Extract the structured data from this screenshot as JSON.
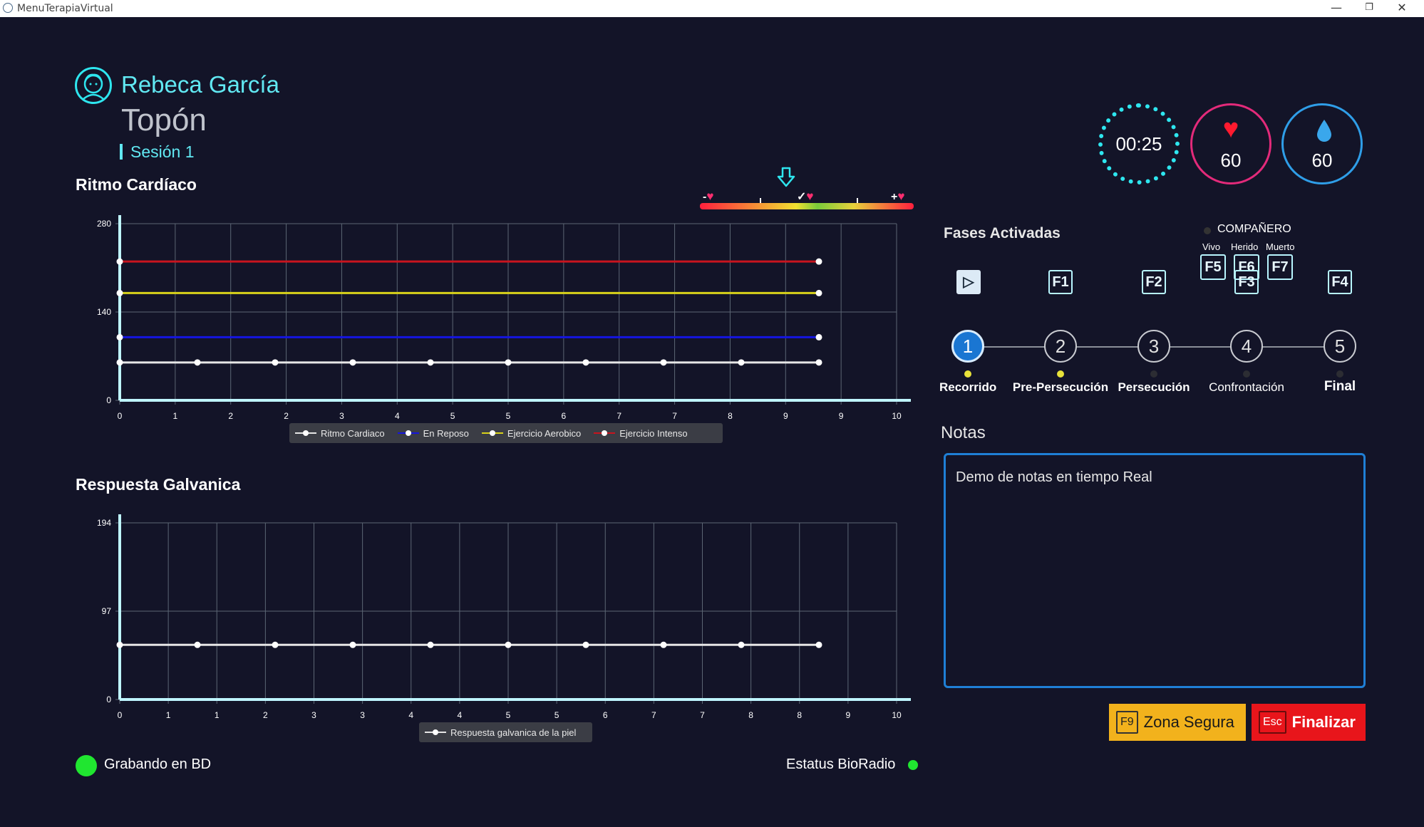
{
  "window": {
    "title": "MenuTerapiaVirtual",
    "minimize": "—",
    "restore": "❐",
    "close": "✕"
  },
  "patient": {
    "name": "Rebeca García",
    "scenario": "Topón",
    "session": "Sesión 1"
  },
  "heart_chart": {
    "title": "Ritmo Cardíaco"
  },
  "gsr_chart": {
    "title": "Respuesta Galvanica"
  },
  "scale": {
    "minus": "-",
    "check": "✓",
    "plus": "+"
  },
  "gauges": {
    "time": "00:25",
    "heart_rate": "60",
    "gsr": "60"
  },
  "phases": {
    "title": "Fases Activadas",
    "start_key": "▷",
    "keys": [
      "F1",
      "F2",
      "F3",
      "F4"
    ],
    "items": [
      {
        "number": "1",
        "label": "Recorrido",
        "active": true,
        "dot": true
      },
      {
        "number": "2",
        "label": "Pre-Persecución",
        "active": false,
        "dot": true
      },
      {
        "number": "3",
        "label": "Persecución",
        "active": false,
        "dot": false
      },
      {
        "number": "4",
        "label": "Confrontación",
        "active": false,
        "dot": false
      },
      {
        "number": "5",
        "label": "Final",
        "active": false,
        "dot": false
      }
    ]
  },
  "companion": {
    "title": "COMPAÑERO",
    "options": [
      {
        "label": "Vivo",
        "key": "F5"
      },
      {
        "label": "Herido",
        "key": "F6"
      },
      {
        "label": "Muerto",
        "key": "F7"
      }
    ]
  },
  "notes": {
    "title": "Notas",
    "value": "Demo de notas en tiempo Real"
  },
  "buttons": {
    "safe_zone": {
      "key": "F9",
      "label": "Zona Segura"
    },
    "finish": {
      "key": "Esc",
      "label": "Finalizar"
    }
  },
  "status": {
    "recording": "Grabando en BD",
    "bioradio": "Estatus BioRadio"
  },
  "colors": {
    "accent": "#61e8f2",
    "background": "#131428",
    "status_ok": "#20e630"
  },
  "chart_data": [
    {
      "type": "line",
      "title": "Ritmo Cardíaco",
      "xticks": [
        "0",
        "1",
        "2",
        "2",
        "3",
        "4",
        "5",
        "5",
        "6",
        "7",
        "7",
        "8",
        "9",
        "9",
        "10"
      ],
      "xlim": [
        0,
        10
      ],
      "yticks": [
        0,
        140,
        280
      ],
      "ylim": [
        0,
        280
      ],
      "grid": true,
      "legend_position": "bottom",
      "series": [
        {
          "name": "Ritmo Cardiaco",
          "color": "#e6e6e6",
          "x": [
            0,
            1,
            2,
            3,
            4,
            5,
            6,
            7,
            8,
            9
          ],
          "y": [
            60,
            60,
            60,
            60,
            60,
            60,
            60,
            60,
            60,
            60
          ]
        },
        {
          "name": "En Reposo",
          "color": "#1515e0",
          "x": [
            0,
            9
          ],
          "y": [
            100,
            100
          ]
        },
        {
          "name": "Ejercicio Aerobico",
          "color": "#d8d21a",
          "x": [
            0,
            9
          ],
          "y": [
            170,
            170
          ]
        },
        {
          "name": "Ejercicio Intenso",
          "color": "#c8141e",
          "x": [
            0,
            9
          ],
          "y": [
            220,
            220
          ]
        }
      ]
    },
    {
      "type": "line",
      "title": "Respuesta Galvanica",
      "xticks": [
        "0",
        "1",
        "1",
        "2",
        "3",
        "3",
        "4",
        "4",
        "5",
        "5",
        "6",
        "7",
        "7",
        "8",
        "8",
        "9",
        "10"
      ],
      "xlim": [
        0,
        10
      ],
      "yticks": [
        0,
        97,
        194
      ],
      "ylim": [
        0,
        194
      ],
      "grid": true,
      "legend_position": "bottom",
      "series": [
        {
          "name": "Respuesta galvanica de la piel",
          "color": "#e6e6e6",
          "x": [
            0,
            1,
            2,
            3,
            4,
            5,
            6,
            7,
            8,
            9
          ],
          "y": [
            60,
            60,
            60,
            60,
            60,
            60,
            60,
            60,
            60,
            60
          ]
        }
      ]
    }
  ]
}
